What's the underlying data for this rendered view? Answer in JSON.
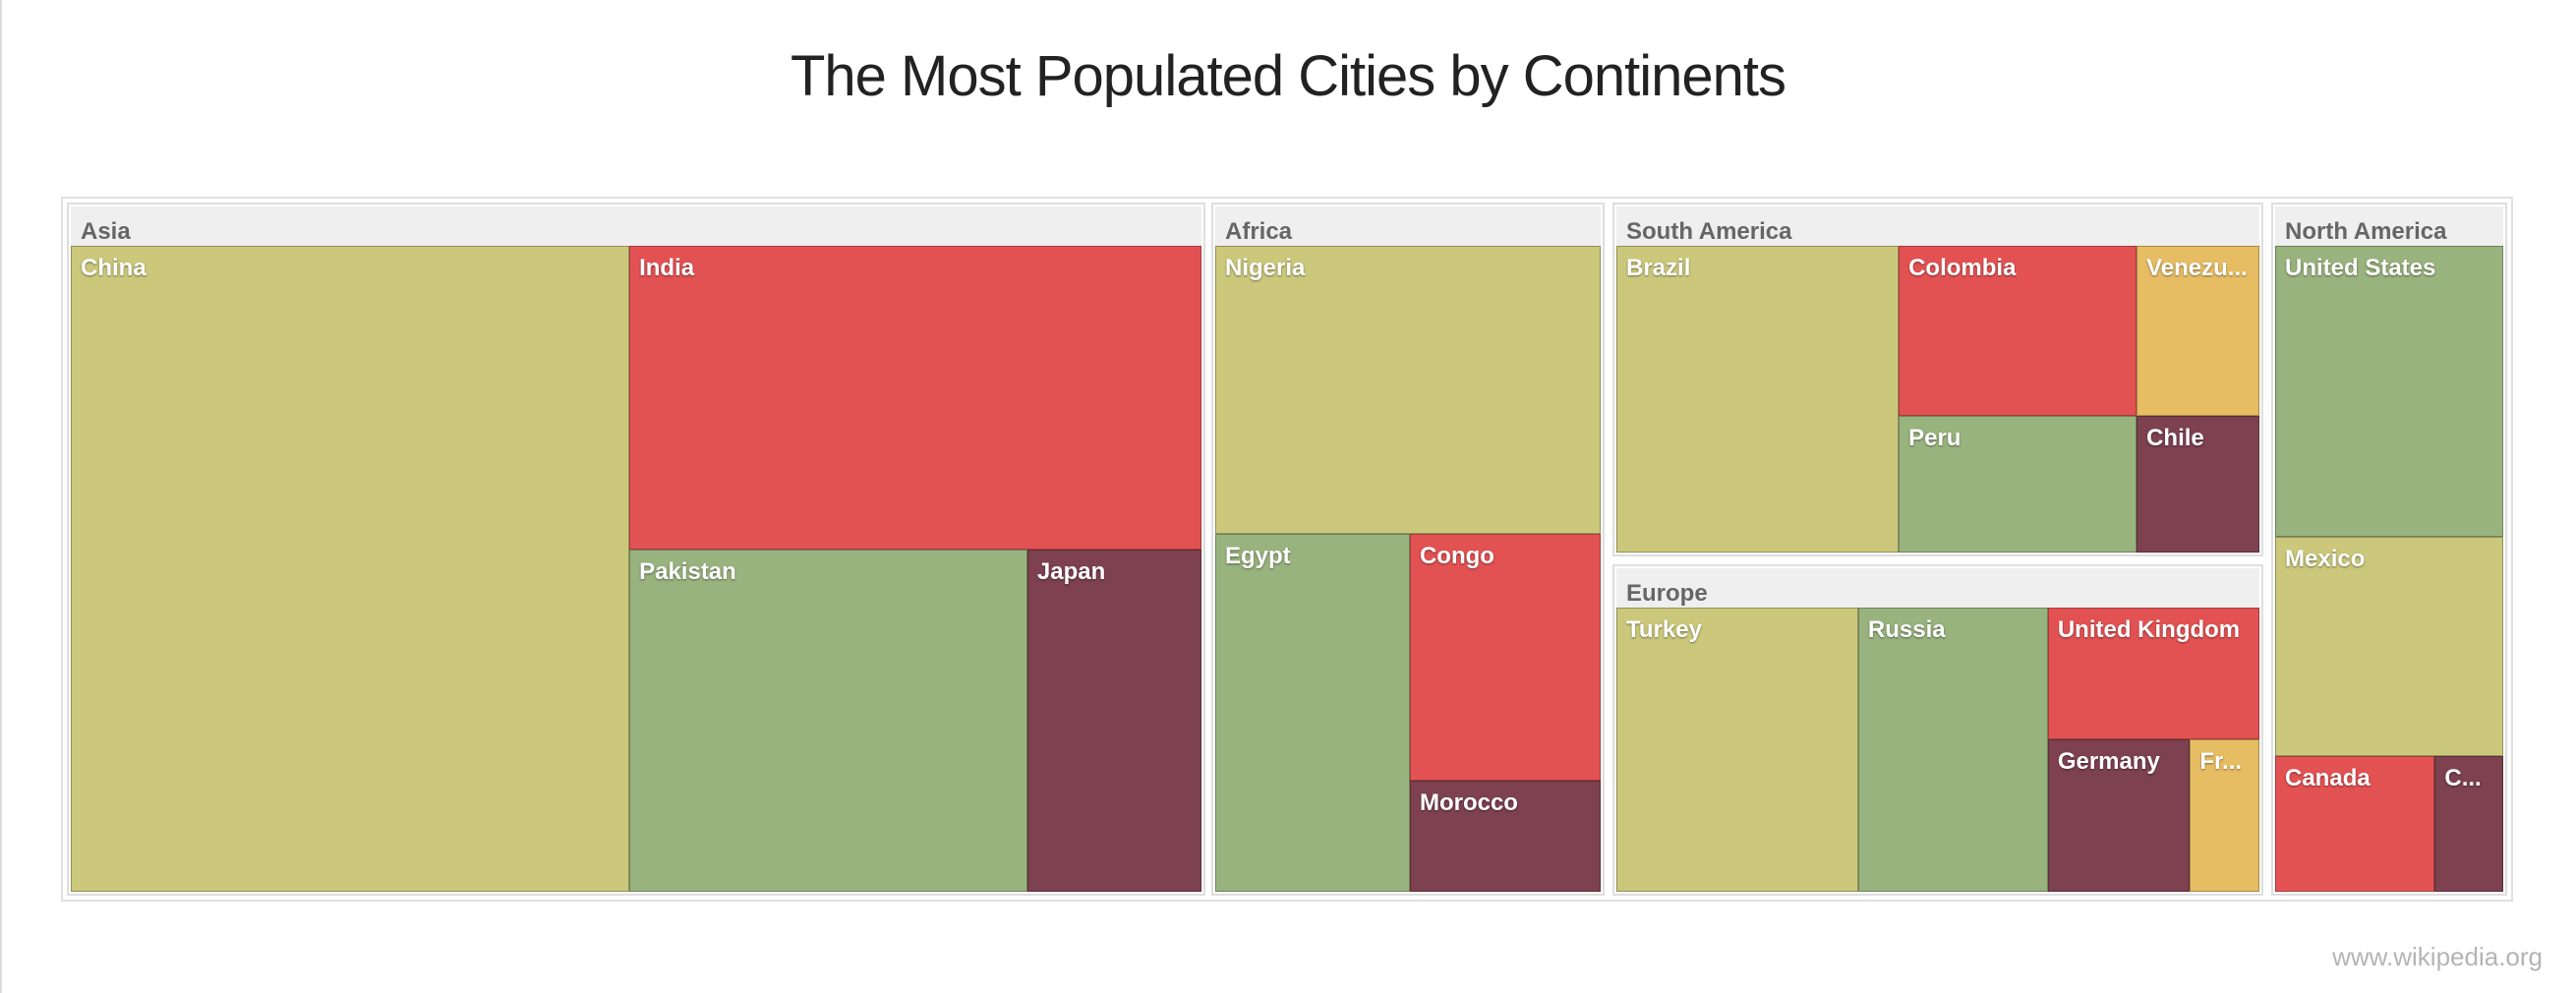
{
  "page": {
    "title": "The Most Populated Cities by Continents",
    "credit": "www.wikipedia.org"
  },
  "chart_data": {
    "type": "treemap",
    "title": "The Most Populated Cities by Continents",
    "value_unit": "relative size (tile area)",
    "colors": {
      "olive": "#cbc87c",
      "red": "#e35253",
      "green": "#99b37e",
      "maroon": "#7d4150",
      "gold": "#e7bd64",
      "header": "#efefef",
      "header_text": "#666666"
    },
    "groups": [
      {
        "name": "Asia",
        "items": [
          {
            "name": "China",
            "label": "China",
            "value": 3.76,
            "color": "olive"
          },
          {
            "name": "India",
            "label": "India",
            "value": 1.8,
            "color": "red"
          },
          {
            "name": "Pakistan",
            "label": "Pakistan",
            "value": 1.4,
            "color": "green"
          },
          {
            "name": "Japan",
            "label": "Japan",
            "value": 0.62,
            "color": "maroon"
          }
        ]
      },
      {
        "name": "Africa",
        "items": [
          {
            "name": "Nigeria",
            "label": "Nigeria",
            "value": 1.15,
            "color": "olive"
          },
          {
            "name": "Egypt",
            "label": "Egypt",
            "value": 0.6,
            "color": "green"
          },
          {
            "name": "Congo",
            "label": "Congo",
            "value": 0.44,
            "color": "red"
          },
          {
            "name": "Morocco",
            "label": "Morocco",
            "value": 0.2,
            "color": "maroon"
          }
        ]
      },
      {
        "name": "South America",
        "items": [
          {
            "name": "Brazil",
            "label": "Brazil",
            "value": 0.88,
            "color": "olive"
          },
          {
            "name": "Colombia",
            "label": "Colombia",
            "value": 0.42,
            "color": "red"
          },
          {
            "name": "Venezuela",
            "label": "Venezu...",
            "value": 0.23,
            "color": "gold"
          },
          {
            "name": "Peru",
            "label": "Peru",
            "value": 0.34,
            "color": "green"
          },
          {
            "name": "Chile",
            "label": "Chile",
            "value": 0.23,
            "color": "maroon"
          }
        ]
      },
      {
        "name": "Europe",
        "items": [
          {
            "name": "Turkey",
            "label": "Turkey",
            "value": 0.82,
            "color": "olive"
          },
          {
            "name": "Russia",
            "label": "Russia",
            "value": 0.64,
            "color": "green"
          },
          {
            "name": "United Kingdom",
            "label": "United Kingdom",
            "value": 0.36,
            "color": "red"
          },
          {
            "name": "Germany",
            "label": "Germany",
            "value": 0.27,
            "color": "maroon"
          },
          {
            "name": "France",
            "label": "Fr...",
            "value": 0.13,
            "color": "gold"
          }
        ]
      },
      {
        "name": "North America",
        "items": [
          {
            "name": "United States",
            "label": "United States",
            "value": 0.75,
            "color": "green"
          },
          {
            "name": "Mexico",
            "label": "Mexico",
            "value": 0.56,
            "color": "olive"
          },
          {
            "name": "Canada",
            "label": "Canada",
            "value": 0.26,
            "color": "red"
          },
          {
            "name": "Costa Rica",
            "label": "C...",
            "value": 0.09,
            "color": "maroon"
          }
        ]
      }
    ]
  }
}
